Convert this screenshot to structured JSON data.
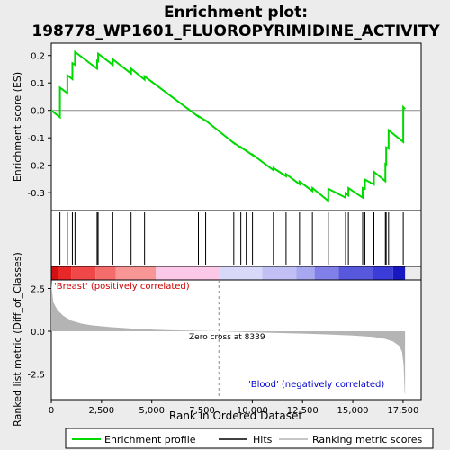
{
  "title_line1": "Enrichment plot:",
  "title_line2": "198778_WP1601_FLUOROPYRIMIDINE_ACTIVITY",
  "es_ylabel": "Enrichment score (ES)",
  "metric_ylabel": "Ranked list metric (Diff_of_Classes)",
  "xlabel": "Rank in Ordered Dataset",
  "pos_label": "'Breast' (positively correlated)",
  "neg_label": "'Blood' (negatively correlated)",
  "zero_cross_label": "Zero cross at 8339",
  "legend": {
    "enrichment": "Enrichment profile",
    "hits": "Hits",
    "ranking": "Ranking metric scores"
  },
  "colors": {
    "enrichment_line": "#00d900",
    "pos_label": "#cc0000",
    "neg_label": "#0000cc",
    "metric_fill": "#b4b4b4"
  },
  "chart_data": {
    "type": "line",
    "x_range": [
      0,
      18400
    ],
    "x_ticks": [
      0,
      2500,
      5000,
      7500,
      10000,
      12500,
      15000,
      17500
    ],
    "x_tick_labels": [
      "0",
      "2,500",
      "5,000",
      "7,500",
      "10,000",
      "12,500",
      "15,000",
      "17,500"
    ],
    "es_ylim": [
      -0.365,
      0.245
    ],
    "es_yticks": [
      0.2,
      0.1,
      0.0,
      -0.1,
      -0.2,
      -0.3
    ],
    "es_ytick_labels": [
      "0.2",
      "0.1",
      "0.0",
      "-0.1",
      "-0.2",
      "-0.3"
    ],
    "metric_ylim": [
      -4.0,
      3.0
    ],
    "metric_yticks": [
      2.5,
      0.0,
      -2.5
    ],
    "metric_ytick_labels": [
      "2.5",
      "0.0",
      "-2.5"
    ],
    "zero_cross": 8339,
    "n_genes": 17600,
    "hits": [
      430,
      800,
      1050,
      1180,
      2280,
      2330,
      3060,
      3970,
      4640,
      7320,
      7680,
      9080,
      9430,
      9700,
      10010,
      11050,
      11680,
      12350,
      12990,
      13780,
      14640,
      14780,
      15490,
      15600,
      16050,
      16620,
      16660,
      16780,
      17510
    ],
    "es_profile": [
      [
        0,
        0.0
      ],
      [
        430,
        -0.025
      ],
      [
        431,
        0.083
      ],
      [
        800,
        0.063
      ],
      [
        801,
        0.128
      ],
      [
        1050,
        0.114
      ],
      [
        1051,
        0.172
      ],
      [
        1180,
        0.166
      ],
      [
        1181,
        0.213
      ],
      [
        2280,
        0.152
      ],
      [
        2281,
        0.181
      ],
      [
        2330,
        0.179
      ],
      [
        2331,
        0.207
      ],
      [
        3060,
        0.166
      ],
      [
        3061,
        0.186
      ],
      [
        3970,
        0.134
      ],
      [
        3971,
        0.152
      ],
      [
        4640,
        0.112
      ],
      [
        4641,
        0.124
      ],
      [
        7320,
        -0.023
      ],
      [
        7321,
        -0.021
      ],
      [
        7680,
        -0.038
      ],
      [
        7681,
        -0.037
      ],
      [
        9080,
        -0.119
      ],
      [
        9081,
        -0.118
      ],
      [
        9430,
        -0.136
      ],
      [
        9431,
        -0.134
      ],
      [
        9700,
        -0.148
      ],
      [
        9701,
        -0.147
      ],
      [
        10010,
        -0.163
      ],
      [
        10011,
        -0.161
      ],
      [
        11050,
        -0.218
      ],
      [
        11051,
        -0.21
      ],
      [
        11680,
        -0.24
      ],
      [
        11681,
        -0.232
      ],
      [
        12350,
        -0.269
      ],
      [
        12351,
        -0.259
      ],
      [
        12990,
        -0.294
      ],
      [
        12991,
        -0.283
      ],
      [
        13780,
        -0.33
      ],
      [
        13781,
        -0.286
      ],
      [
        14640,
        -0.318
      ],
      [
        14641,
        -0.302
      ],
      [
        14780,
        -0.31
      ],
      [
        14781,
        -0.283
      ],
      [
        15490,
        -0.318
      ],
      [
        15491,
        -0.283
      ],
      [
        15600,
        -0.286
      ],
      [
        15601,
        -0.252
      ],
      [
        16050,
        -0.27
      ],
      [
        16051,
        -0.224
      ],
      [
        16620,
        -0.258
      ],
      [
        16621,
        -0.196
      ],
      [
        16660,
        -0.198
      ],
      [
        16661,
        -0.135
      ],
      [
        16780,
        -0.139
      ],
      [
        16781,
        -0.072
      ],
      [
        17510,
        -0.115
      ],
      [
        17511,
        0.012
      ],
      [
        17600,
        0.005
      ]
    ],
    "metric_profile": [
      [
        0,
        2.8
      ],
      [
        100,
        1.7
      ],
      [
        300,
        1.25
      ],
      [
        600,
        0.9
      ],
      [
        1000,
        0.62
      ],
      [
        1500,
        0.45
      ],
      [
        2000,
        0.35
      ],
      [
        3000,
        0.24
      ],
      [
        4000,
        0.16
      ],
      [
        5000,
        0.1
      ],
      [
        6000,
        0.06
      ],
      [
        7000,
        0.03
      ],
      [
        8339,
        0.0
      ],
      [
        9500,
        -0.04
      ],
      [
        11000,
        -0.09
      ],
      [
        12500,
        -0.14
      ],
      [
        14000,
        -0.2
      ],
      [
        15000,
        -0.25
      ],
      [
        16000,
        -0.33
      ],
      [
        16600,
        -0.45
      ],
      [
        17000,
        -0.6
      ],
      [
        17300,
        -0.85
      ],
      [
        17450,
        -1.2
      ],
      [
        17530,
        -2.0
      ],
      [
        17580,
        -3.6
      ],
      [
        17600,
        -3.7
      ]
    ],
    "heatbar_segments": [
      [
        0,
        350,
        "#d41010"
      ],
      [
        350,
        1000,
        "#e82828"
      ],
      [
        1000,
        2200,
        "#f04848"
      ],
      [
        2200,
        3200,
        "#f46c6c"
      ],
      [
        3200,
        5200,
        "#f89696"
      ],
      [
        5200,
        8339,
        "#fcc8e8"
      ],
      [
        8339,
        10500,
        "#d8d8f8"
      ],
      [
        10500,
        12200,
        "#c0c0f4"
      ],
      [
        12200,
        13100,
        "#a8a8f0"
      ],
      [
        13100,
        14300,
        "#8080e8"
      ],
      [
        14300,
        16000,
        "#5858dc"
      ],
      [
        16000,
        17000,
        "#3c3cd8"
      ],
      [
        17000,
        17600,
        "#1818c0"
      ]
    ]
  }
}
